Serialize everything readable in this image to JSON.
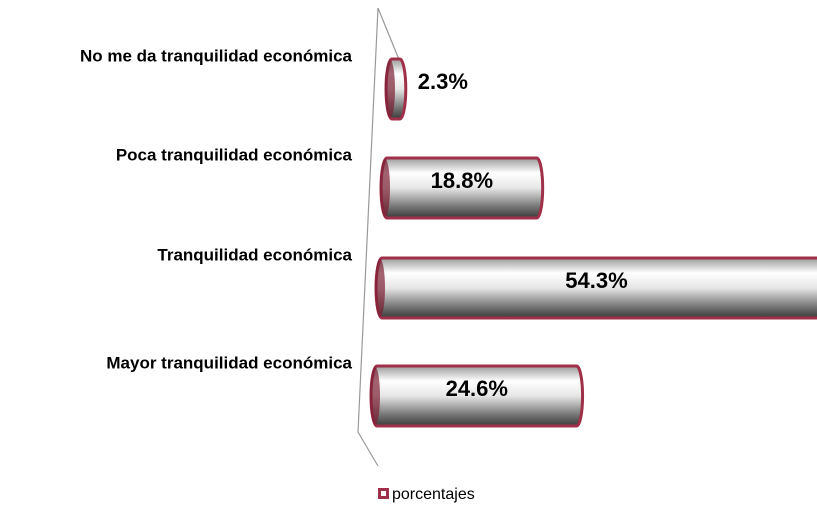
{
  "chart_data": {
    "type": "bar",
    "orientation": "horizontal",
    "categories": [
      "No me da tranquilidad económica",
      "Poca tranquilidad económica",
      "Tranquilidad económica",
      "Mayor tranquilidad económica"
    ],
    "series": [
      {
        "name": "porcentajes",
        "color": "#a0304a",
        "values": [
          2.3,
          18.8,
          54.3,
          24.6
        ],
        "value_labels": [
          "2.3%",
          "18.8%",
          "54.3%",
          "24.6%"
        ]
      }
    ],
    "xlim": [
      0,
      50
    ]
  }
}
